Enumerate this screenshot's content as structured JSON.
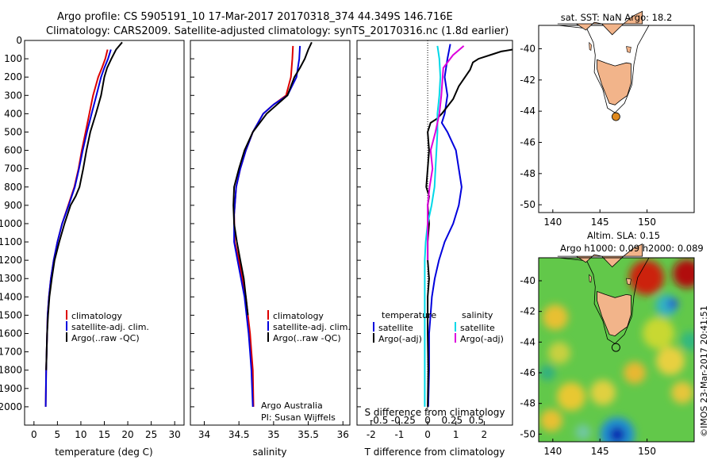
{
  "header": {
    "line1": "Argo profile: CS 5905191_10 17-Mar-2017 20170318_374 44.349S 146.716E",
    "line2": "Climatology: CARS2009. Satellite-adjusted climatology: synTS_20170316.nc (1.8d earlier)"
  },
  "colors": {
    "climatology": "#dd0000",
    "satellite": "#0000dd",
    "argo": "#000000",
    "sal_sat": "#00d8e8",
    "sal_argo": "#dd00dd",
    "land": "#f2b48a",
    "marker": "#e08a1e"
  },
  "chart_data": [
    {
      "type": "line",
      "id": "temperature",
      "xlabel": "temperature (deg C)",
      "ylabel": "",
      "xlim": [
        -2,
        32
      ],
      "ylim": [
        2100,
        0
      ],
      "xticks": [
        0,
        5,
        10,
        15,
        20,
        25,
        30
      ],
      "yticks": [
        0,
        100,
        200,
        300,
        400,
        500,
        600,
        700,
        800,
        900,
        1000,
        1100,
        1200,
        1300,
        1400,
        1500,
        1600,
        1700,
        1800,
        1900,
        2000
      ],
      "legend": [
        "climatology",
        "satellite-adj. clim.",
        "Argo(..raw -QC)"
      ],
      "series": [
        {
          "name": "climatology",
          "color_key": "climatology",
          "x": [
            15.7,
            15.2,
            14.5,
            13.7,
            12.6,
            11.8,
            11.0,
            10.2,
            9.5,
            8.6,
            7.3,
            6.0,
            5.0,
            4.2,
            3.6,
            3.2,
            2.9,
            2.8,
            2.7,
            2.6,
            2.5
          ],
          "y": [
            50,
            100,
            150,
            200,
            300,
            400,
            500,
            600,
            700,
            800,
            900,
            1000,
            1100,
            1200,
            1300,
            1400,
            1500,
            1600,
            1700,
            1800,
            2000
          ]
        },
        {
          "name": "satellite-adj. clim.",
          "color_key": "satellite",
          "x": [
            16.4,
            15.8,
            15.0,
            14.3,
            13.3,
            12.3,
            11.3,
            10.4,
            9.6,
            8.7,
            7.4,
            6.0,
            5.0,
            4.2,
            3.6,
            3.2,
            2.9,
            2.8,
            2.7,
            2.6,
            2.5
          ],
          "y": [
            50,
            100,
            150,
            200,
            300,
            400,
            500,
            600,
            700,
            800,
            900,
            1000,
            1100,
            1200,
            1300,
            1400,
            1500,
            1600,
            1700,
            1800,
            2000
          ]
        },
        {
          "name": "Argo(..raw -QC)",
          "color_key": "argo",
          "x": [
            18.8,
            17.5,
            16.5,
            15.6,
            15.0,
            14.3,
            13.2,
            12.0,
            11.2,
            10.5,
            9.7,
            8.9,
            7.8,
            6.5,
            5.4,
            4.4,
            3.8,
            3.3,
            3.0,
            2.8,
            2.6
          ],
          "y": [
            10,
            50,
            100,
            150,
            200,
            300,
            400,
            500,
            600,
            700,
            800,
            850,
            900,
            1000,
            1100,
            1200,
            1300,
            1400,
            1500,
            1600,
            1800
          ]
        }
      ]
    },
    {
      "type": "line",
      "id": "salinity",
      "xlabel": "salinity",
      "ylabel": "",
      "xlim": [
        33.8,
        36.1
      ],
      "ylim": [
        2100,
        0
      ],
      "xticks": [
        34,
        34.5,
        35,
        35.5,
        36
      ],
      "legend": [
        "climatology",
        "satellite-adj. clim.",
        "Argo(..raw -QC)"
      ],
      "annotation": [
        "Argo Australia",
        "PI: Susan Wijffels"
      ],
      "series": [
        {
          "name": "climatology",
          "color_key": "climatology",
          "x": [
            35.28,
            35.27,
            35.25,
            35.18,
            35.0,
            34.85,
            34.7,
            34.6,
            34.52,
            34.46,
            34.43,
            34.44,
            34.5,
            34.55,
            34.6,
            34.63,
            34.66,
            34.68,
            34.7,
            34.71
          ],
          "y": [
            30,
            100,
            200,
            300,
            350,
            400,
            500,
            600,
            700,
            800,
            950,
            1100,
            1200,
            1300,
            1400,
            1500,
            1600,
            1700,
            1800,
            2000
          ]
        },
        {
          "name": "satellite-adj. clim.",
          "color_key": "satellite",
          "x": [
            35.38,
            35.37,
            35.33,
            35.2,
            35.0,
            34.85,
            34.7,
            34.6,
            34.52,
            34.46,
            34.43,
            34.43,
            34.48,
            34.53,
            34.58,
            34.61,
            34.64,
            34.66,
            34.68,
            34.7
          ],
          "y": [
            30,
            100,
            200,
            300,
            350,
            400,
            500,
            600,
            700,
            800,
            950,
            1100,
            1200,
            1300,
            1400,
            1500,
            1600,
            1700,
            1800,
            2000
          ]
        },
        {
          "name": "Argo(..raw -QC)",
          "color_key": "argo",
          "x": [
            35.55,
            35.5,
            35.45,
            35.38,
            35.3,
            35.2,
            34.9,
            34.7,
            34.58,
            34.5,
            34.43,
            34.42,
            34.43,
            34.47,
            34.52,
            34.57,
            34.6,
            34.63
          ],
          "y": [
            10,
            50,
            100,
            150,
            200,
            300,
            400,
            500,
            600,
            700,
            800,
            900,
            1000,
            1100,
            1200,
            1300,
            1400,
            1500
          ]
        }
      ]
    },
    {
      "type": "line",
      "id": "difference",
      "xlabel": "T difference from climatology",
      "xlabel_top": "S difference from climatology",
      "xlim_T": [
        -2.5,
        3.0
      ],
      "xticks_T": [
        -2,
        -1,
        0,
        1,
        2
      ],
      "xticks_S": [
        -0.5,
        -0.25,
        0,
        0.25,
        0.5
      ],
      "xtick_labels_S": [
        "-0.5",
        "-0.25",
        "0",
        "0.25",
        "0.5"
      ],
      "ylim": [
        2100,
        0
      ],
      "legend_groups": [
        "temperature",
        "salinity"
      ],
      "legend": [
        "satellite",
        "Argo(-adj)",
        "satellite",
        "Argo(-adj)"
      ],
      "series": [
        {
          "name": "temperature satellite",
          "color_key": "satellite",
          "x": [
            0.8,
            0.7,
            0.6,
            0.7,
            0.6,
            0.5,
            0.7,
            1.0,
            1.1,
            1.2,
            1.1,
            0.9,
            0.6,
            0.4,
            0.25,
            0.15,
            0.1,
            0.05,
            0.05,
            0.02
          ],
          "y": [
            20,
            100,
            200,
            300,
            400,
            450,
            500,
            600,
            700,
            800,
            900,
            1000,
            1100,
            1200,
            1300,
            1400,
            1500,
            1600,
            1800,
            2000
          ]
        },
        {
          "name": "temperature Argo(-adj)",
          "color_key": "argo",
          "x": [
            3.0,
            2.6,
            2.2,
            1.8,
            1.6,
            1.5,
            1.1,
            0.9,
            0.5,
            0.3,
            0.1,
            0.0,
            0.05,
            0.0,
            -0.05,
            0.05,
            0.0,
            0.05,
            0.0,
            0.0,
            0.05,
            0.0,
            0.0,
            0.02,
            0.0
          ],
          "y": [
            50,
            60,
            80,
            100,
            120,
            160,
            250,
            320,
            400,
            430,
            450,
            500,
            600,
            700,
            800,
            850,
            900,
            1000,
            1100,
            1200,
            1300,
            1400,
            1600,
            1800,
            2000
          ]
        },
        {
          "name": "salinity satellite",
          "color_key": "sal_sat",
          "x": [
            0.1,
            0.12,
            0.13,
            0.12,
            0.1,
            0.1,
            0.09,
            0.08,
            0.07,
            0.04,
            0.0,
            -0.02,
            -0.03,
            -0.03,
            -0.03,
            -0.03,
            -0.03,
            -0.03,
            -0.03
          ],
          "y": [
            30,
            100,
            200,
            300,
            400,
            500,
            600,
            700,
            800,
            900,
            1000,
            1100,
            1200,
            1300,
            1400,
            1500,
            1600,
            1800,
            2000
          ]
        },
        {
          "name": "salinity Argo(-adj)",
          "color_key": "sal_argo",
          "x": [
            0.37,
            0.26,
            0.16,
            0.14,
            0.12,
            0.08,
            0.03,
            0.05,
            0.02,
            0.0,
            0.0,
            0.0,
            0.0
          ],
          "y": [
            30,
            80,
            150,
            300,
            400,
            500,
            600,
            700,
            800,
            900,
            1000,
            1100,
            1200
          ]
        }
      ]
    },
    {
      "type": "map",
      "id": "sst_map",
      "title": "sat. SST: NaN Argo: 18.2",
      "xlim": [
        138.5,
        155
      ],
      "ylim": [
        -50.5,
        -38.5
      ],
      "xticks": [
        140,
        145,
        150
      ],
      "yticks": [
        -40,
        -42,
        -44,
        -46,
        -48,
        -50
      ],
      "marker": {
        "lon": 146.7,
        "lat": -44.35
      }
    },
    {
      "type": "heatmap",
      "id": "sla_map",
      "title_line1": "Altim. SLA: 0.15",
      "title_line2": "Argo h1000: 0.09 h2000: 0.089",
      "xlim": [
        138.5,
        155
      ],
      "ylim": [
        -50.5,
        -38.5
      ],
      "xticks": [
        140,
        145,
        150
      ],
      "yticks": [
        -40,
        -42,
        -44,
        -46,
        -48,
        -50
      ],
      "marker": {
        "lon": 146.7,
        "lat": -44.35
      },
      "side_label": "©IMOS 23-Mar-2017 20:41:51"
    }
  ]
}
